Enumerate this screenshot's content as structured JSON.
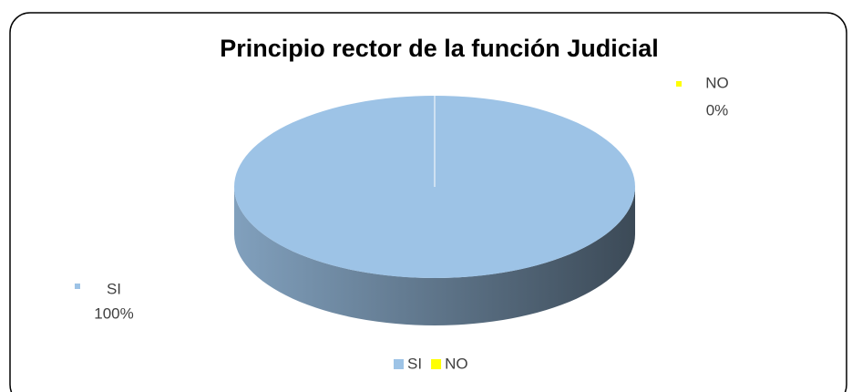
{
  "chart_data": {
    "type": "pie",
    "title": "Principio rector de la función Judicial",
    "categories": [
      "SI",
      "NO"
    ],
    "values": [
      100,
      0
    ],
    "value_labels": [
      "100%",
      "0%"
    ],
    "colors": [
      "#9dc3e6",
      "#ffff00"
    ],
    "legend": "bottom",
    "three_d": true
  }
}
